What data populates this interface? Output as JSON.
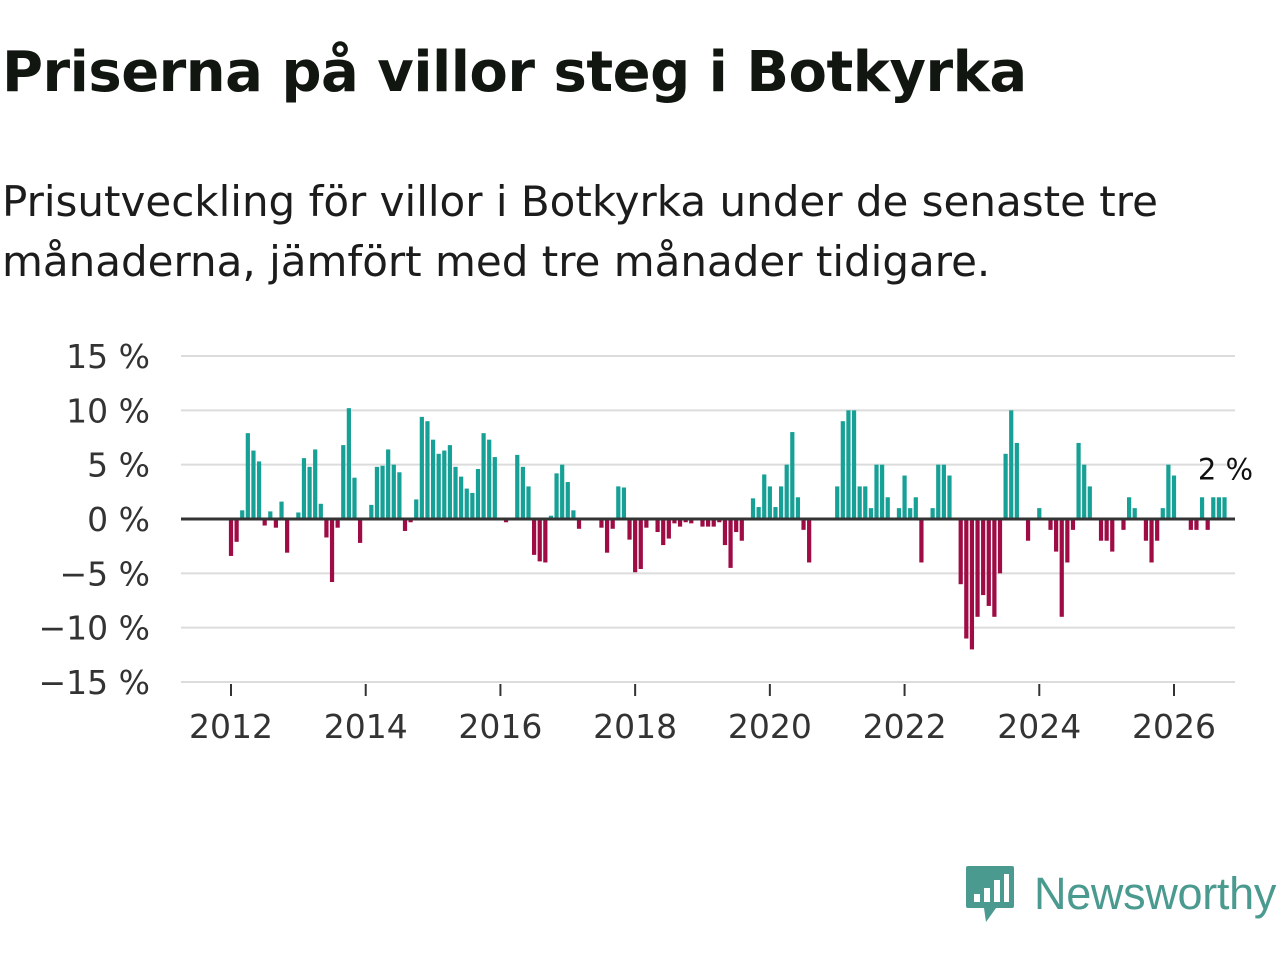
{
  "header": {
    "title": "Priserna på villor steg i Botkyrka",
    "subtitle": "Prisutveckling för villor i Botkyrka under de senaste tre månaderna, jämfört med tre månader tidigare."
  },
  "brand": {
    "name": "Newsworthy",
    "color": "#4a9a90"
  },
  "colors": {
    "positive": "#17a196",
    "negative": "#9e0b45",
    "grid": "#dcdcdc",
    "zero_line": "#333333"
  },
  "chart_data": {
    "type": "bar",
    "title": "Priserna på villor steg i Botkyrka",
    "xlabel": "",
    "ylabel": "",
    "ylim": [
      -15,
      15
    ],
    "y_ticks": [
      15,
      10,
      5,
      0,
      -5,
      -10,
      -15
    ],
    "y_tick_labels": [
      "15 %",
      "10 %",
      "5 %",
      "0 %",
      "−5 %",
      "−10 %",
      "−15 %"
    ],
    "x_ticks": [
      2012,
      2014,
      2016,
      2018,
      2020,
      2022,
      2024,
      2026
    ],
    "x_tick_labels": [
      "2012",
      "2014",
      "2016",
      "2018",
      "2020",
      "2022",
      "2024",
      "2026"
    ],
    "start": {
      "year": 2012,
      "month": 1
    },
    "frequency": "monthly",
    "values": [
      -3.4,
      -2.1,
      0.8,
      7.9,
      6.3,
      5.3,
      -0.6,
      0.7,
      -0.8,
      1.6,
      -3.1,
      0,
      0.6,
      5.6,
      4.8,
      6.4,
      1.4,
      -1.7,
      -5.8,
      -0.8,
      6.8,
      10.2,
      3.8,
      -2.2,
      0,
      1.3,
      4.8,
      4.9,
      6.4,
      5.0,
      4.3,
      -1.1,
      -0.3,
      1.8,
      9.4,
      9.0,
      7.3,
      6.0,
      6.3,
      6.8,
      4.8,
      3.9,
      2.8,
      2.4,
      4.6,
      7.9,
      7.3,
      5.7,
      0,
      -0.3,
      0,
      5.9,
      4.8,
      3.0,
      -3.3,
      -3.9,
      -4.0,
      0.3,
      4.2,
      5.0,
      3.4,
      0.8,
      -0.9,
      0,
      0,
      0,
      -0.8,
      -3.1,
      -0.9,
      3.0,
      2.9,
      -1.9,
      -4.9,
      -4.6,
      -0.8,
      0,
      -1.2,
      -2.4,
      -1.8,
      -0.4,
      -0.7,
      -0.3,
      -0.4,
      0,
      -0.7,
      -0.7,
      -0.7,
      -0.3,
      -2.4,
      -4.5,
      -1.2,
      -2.0,
      0,
      1.9,
      1.1,
      4.1,
      3.0,
      1.1,
      3.0,
      5.0,
      8.0,
      2.0,
      -1.0,
      -4.0,
      0,
      0,
      0,
      0,
      3.0,
      9.0,
      10.0,
      10.0,
      3.0,
      3.0,
      1.0,
      5.0,
      5.0,
      2.0,
      0,
      1.0,
      4.0,
      1.0,
      2.0,
      -4.0,
      0,
      1.0,
      5.0,
      5.0,
      4.0,
      0,
      -6.0,
      -11.0,
      -12.0,
      -9.0,
      -7.0,
      -8.0,
      -9.0,
      -5.0,
      6.0,
      10.0,
      7.0,
      0,
      -2.0,
      0,
      1.0,
      0,
      -1.0,
      -3.0,
      -9.0,
      -4.0,
      -1.0,
      7.0,
      5.0,
      3.0,
      0,
      -2.0,
      -2.0,
      -3.0,
      0,
      -1.0,
      2.0,
      1.0,
      0,
      -2.0,
      -4.0,
      -2.0,
      1.0,
      5.0,
      4.0,
      0,
      0,
      -1.0,
      -1.0,
      2.0,
      -1.0,
      2.0,
      2.0,
      2.0
    ],
    "last_value_label": "2 %"
  }
}
